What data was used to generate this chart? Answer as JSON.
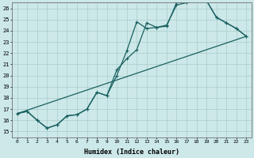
{
  "xlabel": "Humidex (Indice chaleur)",
  "xlim": [
    -0.5,
    23.5
  ],
  "ylim": [
    14.5,
    26.5
  ],
  "xticks": [
    0,
    1,
    2,
    3,
    4,
    5,
    6,
    7,
    8,
    9,
    10,
    11,
    12,
    13,
    14,
    15,
    16,
    17,
    18,
    19,
    20,
    21,
    22,
    23
  ],
  "yticks": [
    15,
    16,
    17,
    18,
    19,
    20,
    21,
    22,
    23,
    24,
    25,
    26
  ],
  "bg_color": "#cce8e8",
  "grid_color": "#aacccc",
  "line_color": "#1a6060",
  "line1_x": [
    0,
    1,
    2,
    3,
    4,
    5,
    6,
    7,
    8,
    9,
    10,
    11,
    12,
    13,
    14,
    15,
    16,
    17,
    18,
    19,
    20,
    21,
    22,
    23
  ],
  "line1_y": [
    16.6,
    16.8,
    16.0,
    15.3,
    15.6,
    16.4,
    16.5,
    17.0,
    18.5,
    18.2,
    20.5,
    21.5,
    22.3,
    24.7,
    24.3,
    24.4,
    26.5,
    26.6,
    26.7,
    26.7,
    25.2,
    24.7,
    24.2,
    23.5
  ],
  "line2_x": [
    0,
    1,
    2,
    3,
    4,
    5,
    6,
    7,
    8,
    9,
    10,
    11,
    12,
    13,
    14,
    15,
    16,
    17,
    18,
    19,
    20,
    21,
    22,
    23
  ],
  "line2_y": [
    16.6,
    16.8,
    16.0,
    15.3,
    15.6,
    16.4,
    16.5,
    17.0,
    18.5,
    18.2,
    20.0,
    22.2,
    24.8,
    24.2,
    24.3,
    24.5,
    26.3,
    26.5,
    26.7,
    26.7,
    25.2,
    24.7,
    24.2,
    23.5
  ],
  "line3_x": [
    0,
    23
  ],
  "line3_y": [
    16.6,
    23.5
  ]
}
